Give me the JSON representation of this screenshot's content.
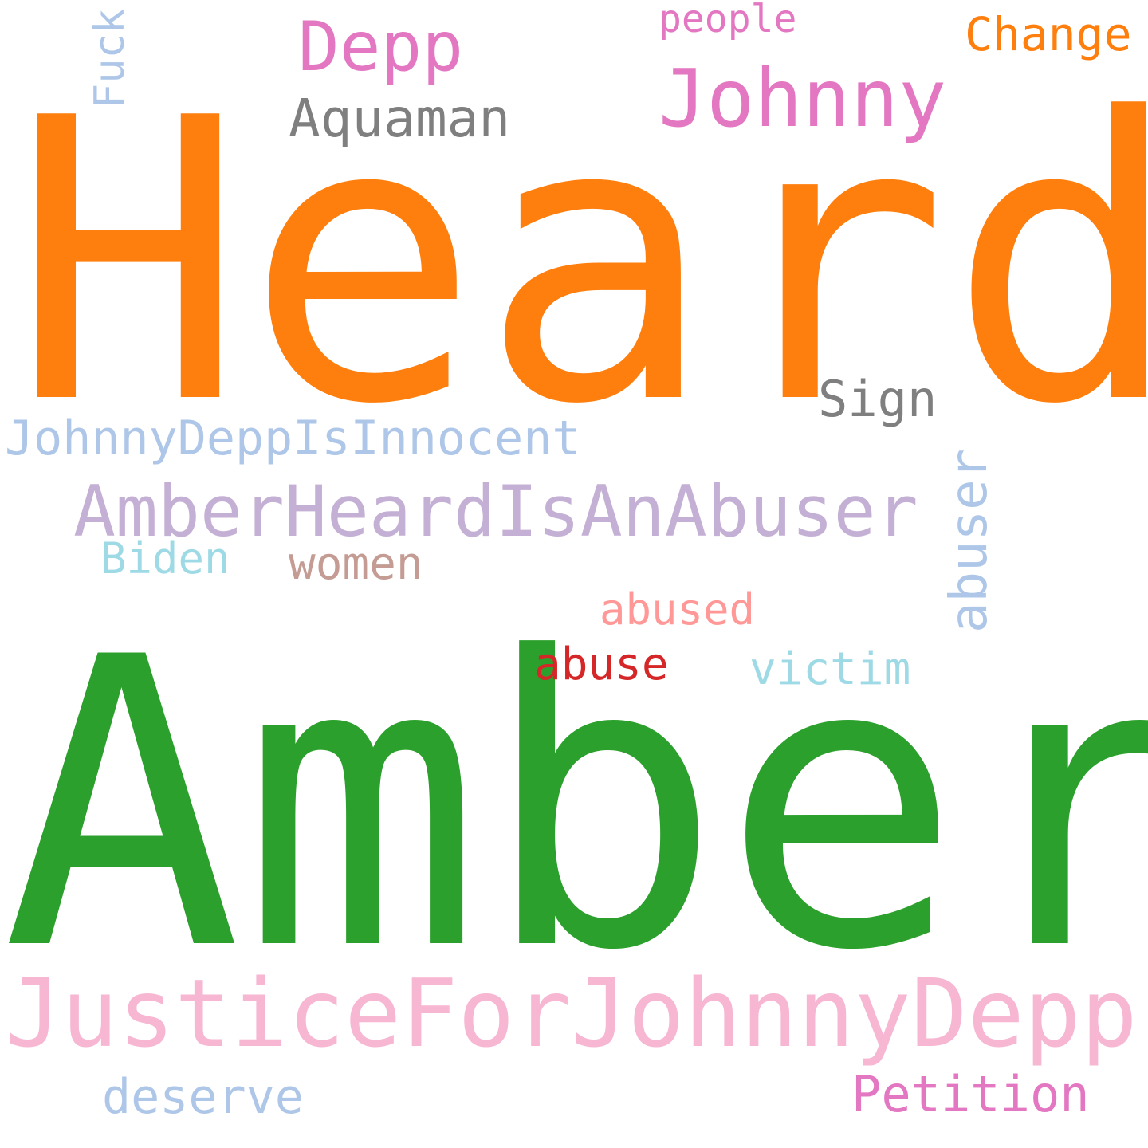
{
  "colors": {
    "background": "#ffffff",
    "orange": "#ff7f0e",
    "green": "#2ca02c",
    "pink": "#f7b6d2",
    "magenta": "#e377c2",
    "lavender": "#c5b0d5",
    "light_blue": "#aec7e8",
    "gray": "#7f7f7f",
    "cyan": "#9edae5",
    "brown": "#c49c94",
    "salmon": "#ff9896",
    "red": "#d62728"
  },
  "words": {
    "heard": "Heard",
    "amber": "Amber",
    "justice_for_johnny_depp": "JusticeForJohnnyDepp",
    "amber_heard_is_an_abuser": "AmberHeardIsAnAbuser",
    "johnny": "Johnny",
    "depp": "Depp",
    "johnny_depp_is_innocent": "JohnnyDeppIsInnocent",
    "aquaman": "Aquaman",
    "change": "Change",
    "people": "people",
    "fuck": "Fuck",
    "sign": "Sign",
    "abuser": "abuser",
    "biden": "Biden",
    "women": "women",
    "abused": "abused",
    "abuse": "abuse",
    "victim": "victim",
    "petition": "Petition",
    "deserve": "deserve"
  }
}
